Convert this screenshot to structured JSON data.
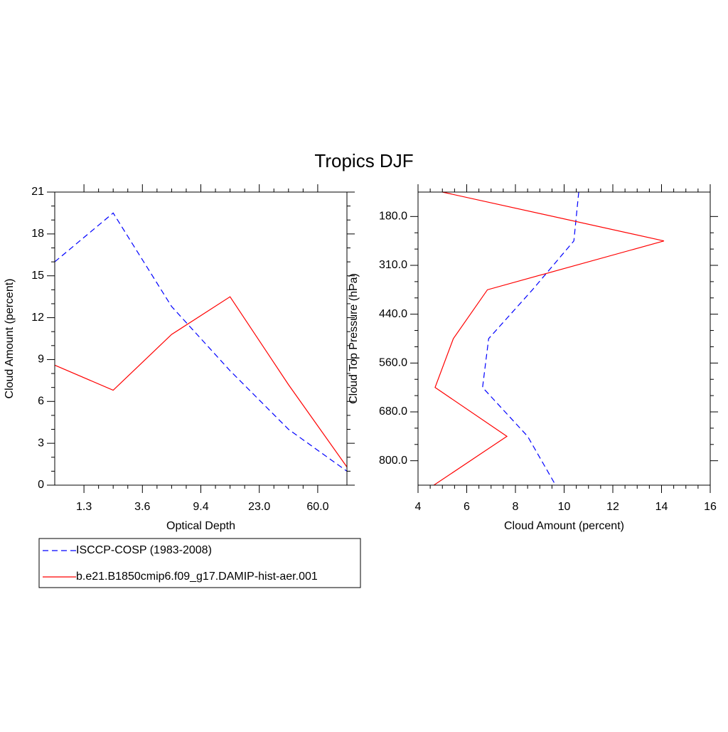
{
  "title": "Tropics DJF",
  "chart_data": [
    {
      "type": "line",
      "xlabel": "Optical Depth",
      "ylabel": "Cloud Amount (percent)",
      "x": [
        0,
        1,
        2,
        3,
        4,
        5
      ],
      "xlim": [
        0,
        5
      ],
      "xticks": [
        {
          "value": 0.5,
          "label": "1.3"
        },
        {
          "value": 1.5,
          "label": "3.6"
        },
        {
          "value": 2.5,
          "label": "9.4"
        },
        {
          "value": 3.5,
          "label": "23.0"
        },
        {
          "value": 4.5,
          "label": "60.0"
        }
      ],
      "ylim": [
        0,
        21
      ],
      "yticks": [
        0,
        3,
        6,
        9,
        12,
        15,
        18,
        21
      ],
      "series": [
        {
          "name": "ISCCP-COSP (1983-2008)",
          "color": "#0000ff",
          "line_style": "dashed",
          "values": [
            16.0,
            19.5,
            12.8,
            8.2,
            4.0,
            1.0
          ]
        },
        {
          "name": "b.e21.B1850cmip6.f09_g17.DAMIP-hist-aer.001",
          "color": "#ff0000",
          "line_style": "solid",
          "values": [
            8.6,
            6.8,
            10.8,
            13.5,
            7.2,
            1.3
          ]
        }
      ]
    },
    {
      "type": "line",
      "orientation": "horizontal",
      "xlabel": "Cloud Amount (percent)",
      "ylabel": "Cloud Top Pressure (hPa)",
      "y": [
        0,
        1,
        2,
        3,
        4,
        5,
        6
      ],
      "ylim": [
        6,
        0
      ],
      "yticks": [
        {
          "value": 0.5,
          "label": "180.0"
        },
        {
          "value": 1.5,
          "label": "310.0"
        },
        {
          "value": 2.5,
          "label": "440.0"
        },
        {
          "value": 3.5,
          "label": "560.0"
        },
        {
          "value": 4.5,
          "label": "680.0"
        },
        {
          "value": 5.5,
          "label": "800.0"
        }
      ],
      "xlim": [
        4,
        16
      ],
      "xticks": [
        4,
        6,
        8,
        10,
        12,
        14,
        16
      ],
      "series": [
        {
          "name": "ISCCP-COSP (1983-2008)",
          "color": "#0000ff",
          "line_style": "dashed",
          "values": [
            10.6,
            10.4,
            8.7,
            6.9,
            6.65,
            8.5,
            9.65
          ]
        },
        {
          "name": "b.e21.B1850cmip6.f09_g17.DAMIP-hist-aer.001",
          "color": "#ff0000",
          "line_style": "solid",
          "values": [
            5.0,
            14.1,
            6.85,
            5.45,
            4.7,
            7.65,
            4.65
          ]
        }
      ]
    }
  ]
}
